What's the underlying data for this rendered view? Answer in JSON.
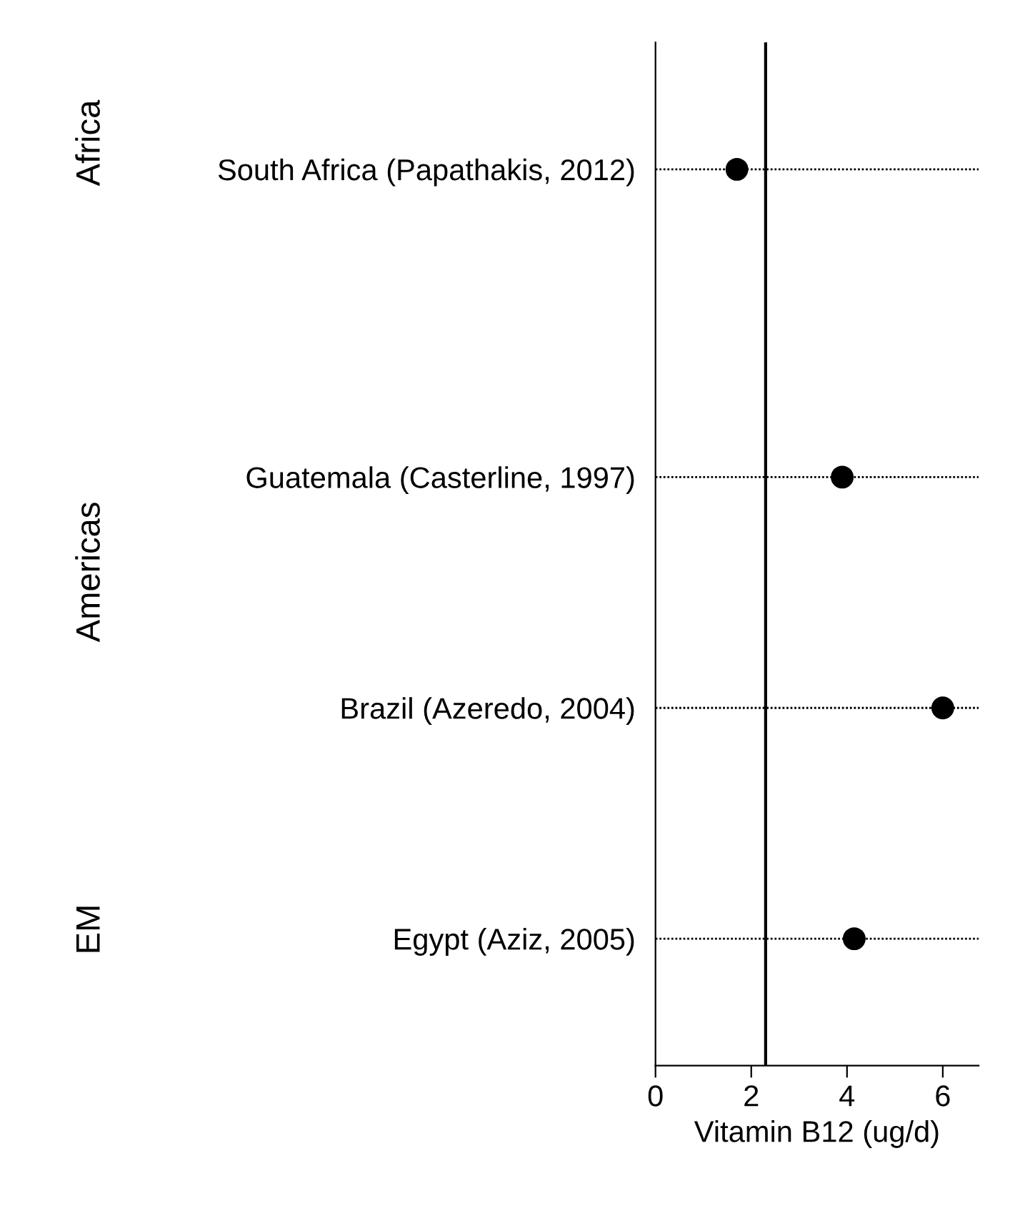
{
  "chart_data": {
    "type": "scatter",
    "orientation": "horizontal",
    "xlabel": "Vitamin B12 (ug/d)",
    "categories": [
      "South Africa (Papathakis, 2012)",
      null,
      null,
      null,
      "Guatemala (Casterline, 1997)",
      null,
      null,
      "Brazil (Azeredo, 2004)",
      null,
      null,
      "Egypt (Aziz, 2005)"
    ],
    "series": [
      {
        "color": "#000000",
        "values": [
          1.7,
          null,
          null,
          null,
          3.9,
          null,
          null,
          6.0,
          null,
          null,
          4.15
        ]
      }
    ],
    "xlim": [
      0,
      6.75
    ],
    "xticks": [
      0,
      2,
      4,
      6
    ],
    "marker": "circle",
    "grid": "y",
    "ref_lines": [
      {
        "axis": "x",
        "value": 2.3,
        "color": "#000000",
        "line_style": "solid"
      }
    ],
    "annotations": [
      "Africa",
      "Americas",
      "EM"
    ]
  }
}
